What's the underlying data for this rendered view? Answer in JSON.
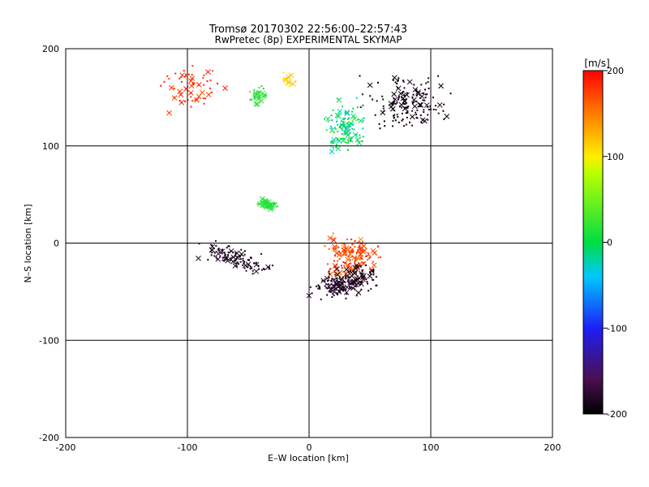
{
  "chart_data": {
    "type": "scatter",
    "title": "Tromsø 20170302 22:56:00–22:57:43",
    "subtitle": "RwPretec (8p) EXPERIMENTAL SKYMAP",
    "xlabel": "E–W location [km]",
    "ylabel": "N–S location [km]",
    "xlim": [
      -200,
      200
    ],
    "ylim": [
      -200,
      200
    ],
    "xticks": [
      -200,
      -100,
      0,
      100,
      200
    ],
    "yticks": [
      -200,
      -100,
      0,
      100,
      200
    ],
    "grid": true,
    "colorbar": {
      "label": "[m/s]",
      "range": [
        -200,
        200
      ],
      "ticks": [
        200,
        100,
        0,
        -100,
        -200
      ],
      "colormap": "rainbow (black-purple-blue-cyan-green-yellow-red)"
    },
    "marker_styles": [
      "dot",
      "x"
    ],
    "clusters": [
      {
        "region": "NW red cluster",
        "center": [
          -95,
          160
        ],
        "velocity": 180
      },
      {
        "region": "N cyan cluster",
        "center": [
          -42,
          152
        ],
        "velocity": 20
      },
      {
        "region": "N yellow cluster",
        "center": [
          -18,
          168
        ],
        "velocity": 110
      },
      {
        "region": "NE dark cluster",
        "center": [
          80,
          145
        ],
        "velocity": -190
      },
      {
        "region": "N green/cyan band",
        "center": [
          30,
          120
        ],
        "velocity": -10
      },
      {
        "region": "Central green cluster",
        "center": [
          -35,
          40
        ],
        "velocity": 15
      },
      {
        "region": "Central red cluster",
        "center": [
          35,
          -15
        ],
        "velocity": 170
      },
      {
        "region": "Southern dark band",
        "center": [
          30,
          -40
        ],
        "velocity": -185
      },
      {
        "region": "SW black band",
        "center": [
          -60,
          -15
        ],
        "velocity": -185
      }
    ]
  }
}
